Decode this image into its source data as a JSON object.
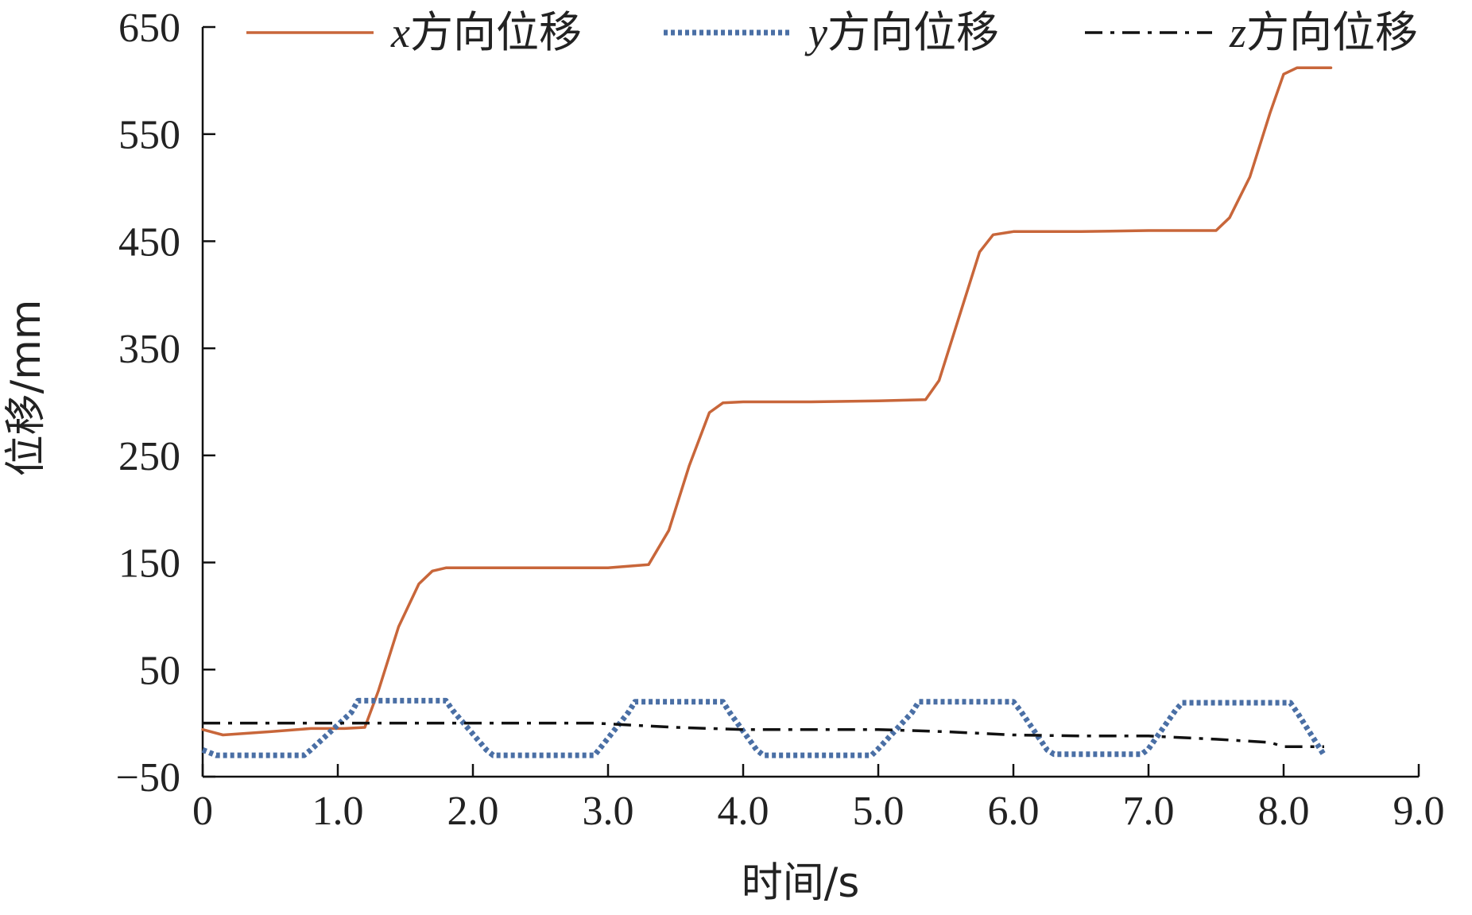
{
  "chart_data": {
    "type": "line",
    "xlabel": "时间/s",
    "ylabel": "位移/mm",
    "xlim": [
      0,
      9
    ],
    "ylim": [
      -50,
      650
    ],
    "xticks": [
      0,
      1,
      2,
      3,
      4,
      5,
      6,
      7,
      8,
      9
    ],
    "xtick_labels": [
      "0",
      "1.0",
      "2.0",
      "3.0",
      "4.0",
      "5.0",
      "6.0",
      "7.0",
      "8.0",
      "9.0"
    ],
    "yticks": [
      650,
      550,
      450,
      350,
      250,
      150,
      50,
      -50
    ],
    "ytick_labels": [
      "650",
      "550",
      "450",
      "350",
      "250",
      "150",
      "50",
      "−50"
    ],
    "grid": false,
    "legend_position": "top",
    "series": [
      {
        "name": "x方向位移",
        "name_prefix": "x",
        "name_suffix": "方向位移",
        "color": "#c8663a",
        "style": "solid",
        "x": [
          0,
          0.15,
          0.5,
          0.8,
          1.05,
          1.2,
          1.3,
          1.45,
          1.6,
          1.7,
          1.8,
          2.0,
          2.5,
          3.0,
          3.3,
          3.45,
          3.6,
          3.75,
          3.85,
          4.0,
          4.5,
          5.0,
          5.35,
          5.45,
          5.6,
          5.75,
          5.85,
          6.0,
          6.5,
          7.0,
          7.5,
          7.6,
          7.75,
          7.9,
          8.0,
          8.1,
          8.35
        ],
        "y": [
          -6,
          -11,
          -8,
          -5,
          -5,
          -4,
          30,
          90,
          130,
          142,
          145,
          145,
          145,
          145,
          148,
          180,
          240,
          290,
          299,
          300,
          300,
          301,
          302,
          320,
          380,
          440,
          456,
          459,
          459,
          460,
          460,
          472,
          510,
          570,
          606,
          612,
          612
        ]
      },
      {
        "name": "y方向位移",
        "name_prefix": "y",
        "name_suffix": "方向位移",
        "color": "#4a6fa5",
        "style": "dotted",
        "x": [
          0,
          0.1,
          0.75,
          0.8,
          1.1,
          1.15,
          1.8,
          1.85,
          2.1,
          2.15,
          2.9,
          2.95,
          3.15,
          3.2,
          3.85,
          3.9,
          4.1,
          4.15,
          4.95,
          5.0,
          5.25,
          5.3,
          6.0,
          6.05,
          6.25,
          6.3,
          6.95,
          7.0,
          7.2,
          7.25,
          8.05,
          8.1,
          8.25,
          8.3
        ],
        "y": [
          -25,
          -30,
          -30,
          -25,
          10,
          21,
          21,
          12,
          -25,
          -30,
          -30,
          -22,
          10,
          20,
          20,
          10,
          -25,
          -30,
          -30,
          -24,
          10,
          20,
          20,
          12,
          -25,
          -29,
          -29,
          -24,
          12,
          19,
          19,
          10,
          -20,
          -30
        ]
      },
      {
        "name": "z方向位移",
        "name_prefix": "z",
        "name_suffix": "方向位移",
        "color": "#111111",
        "style": "dashdot",
        "x": [
          0,
          1.0,
          2.0,
          2.9,
          3.05,
          3.5,
          4.0,
          4.5,
          5.0,
          5.5,
          6.0,
          6.5,
          7.0,
          7.5,
          7.9,
          8.0,
          8.3
        ],
        "y": [
          0,
          0,
          0,
          0,
          -1,
          -4,
          -6,
          -6,
          -6,
          -8,
          -11,
          -12,
          -12,
          -15,
          -18,
          -22,
          -22
        ]
      }
    ]
  }
}
